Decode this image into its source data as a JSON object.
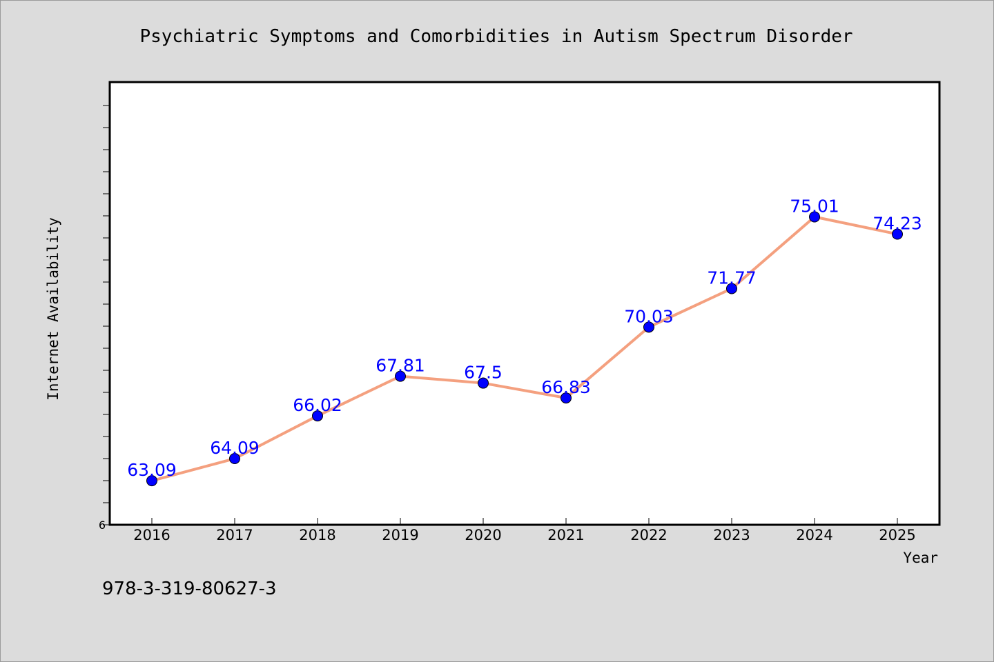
{
  "chart_data": {
    "type": "line",
    "title": "Psychiatric Symptoms and Comorbidities in Autism Spectrum Disorder",
    "xlabel": "Year",
    "ylabel": "Internet Availability",
    "x": [
      "2016",
      "2017",
      "2018",
      "2019",
      "2020",
      "2021",
      "2022",
      "2023",
      "2024",
      "2025"
    ],
    "series": [
      {
        "values": [
          63.09,
          64.09,
          66.02,
          67.81,
          67.5,
          66.83,
          70.03,
          71.77,
          75.01,
          74.23
        ],
        "line_color": "#f4a07f",
        "marker_color": "#0000ff",
        "label_color": "#0000ff"
      }
    ],
    "y_tick_labels": [
      "6"
    ],
    "ylim": [
      61.1,
      81.1
    ],
    "grid": false,
    "legend": "none"
  },
  "footer": {
    "text": "978-3-319-80627-3"
  }
}
